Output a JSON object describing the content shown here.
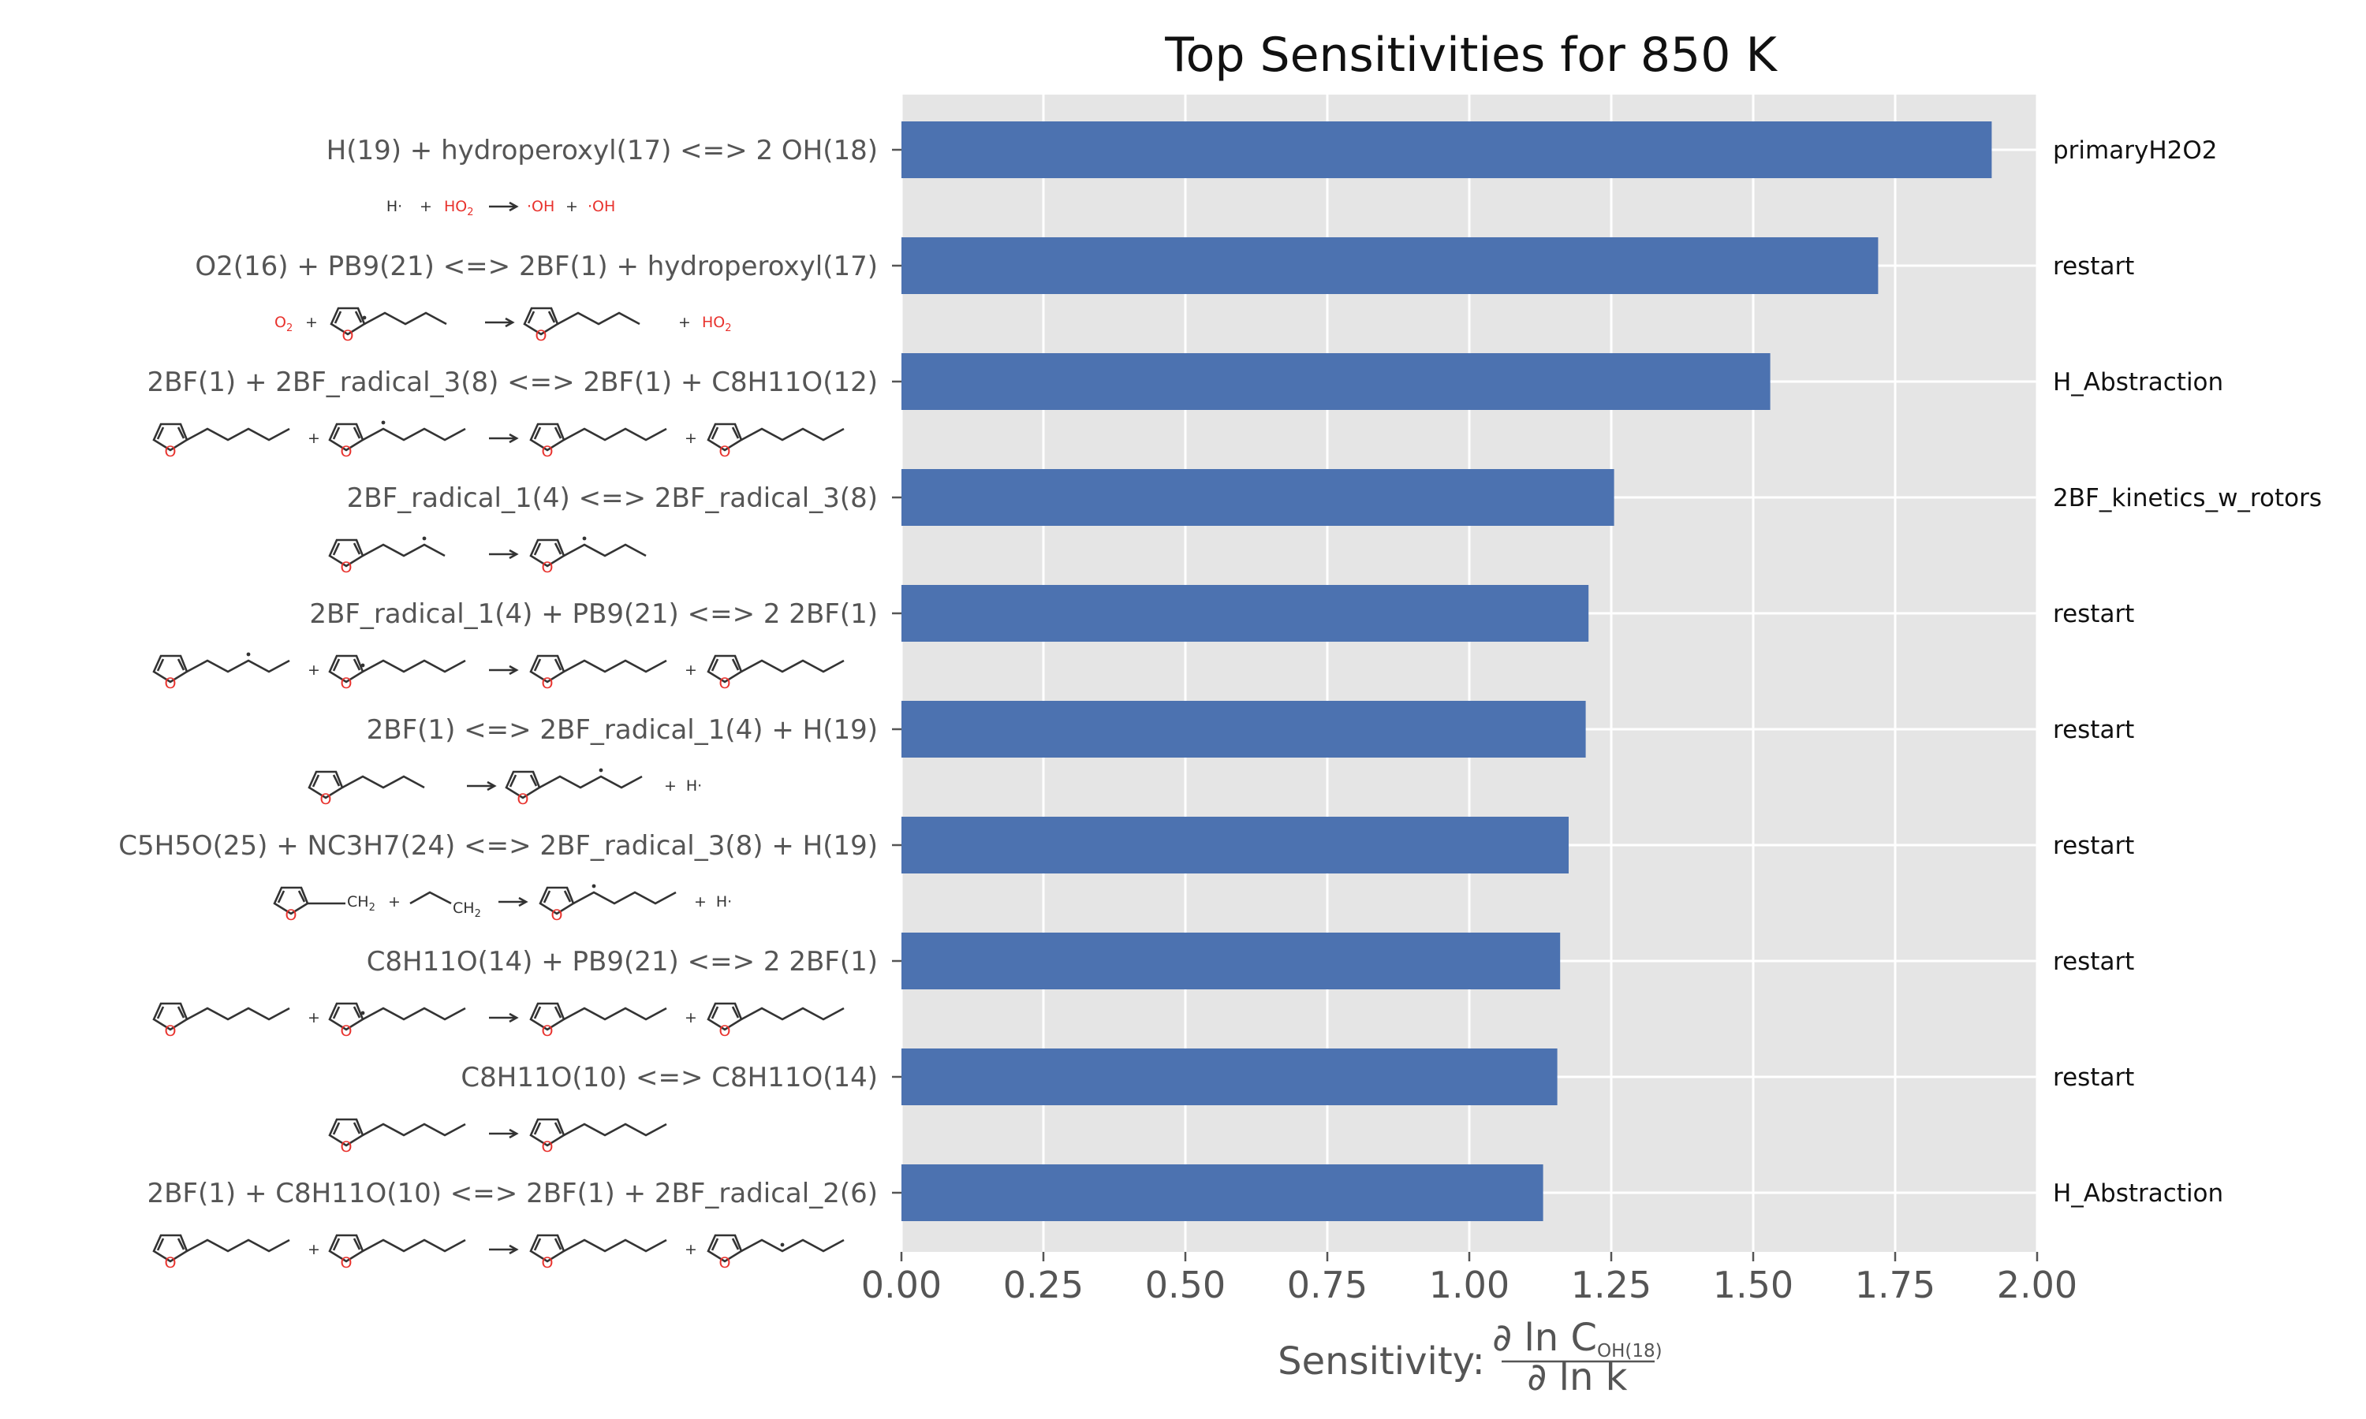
{
  "chart_data": {
    "type": "bar",
    "orientation": "horizontal",
    "title": "Top Sensitivities for 850 K",
    "xlabel": {
      "prefix": "Sensitivity: ",
      "numerator": "∂ ln C",
      "numerator_sub": "OH(18)",
      "denominator": "∂ ln k"
    },
    "xlim": [
      0,
      2.0
    ],
    "xticks": [
      "0.00",
      "0.25",
      "0.50",
      "0.75",
      "1.00",
      "1.25",
      "1.50",
      "1.75",
      "2.00"
    ],
    "grid": true,
    "bar_color": "#4c72b0",
    "background_color": "#e5e5e5",
    "categories": [
      "H(19) + hydroperoxyl(17) <=> 2 OH(18)",
      "O2(16) + PB9(21) <=> 2BF(1) + hydroperoxyl(17)",
      "2BF(1) + 2BF_radical_3(8) <=> 2BF(1) + C8H11O(12)",
      "2BF_radical_1(4) <=> 2BF_radical_3(8)",
      "2BF_radical_1(4) + PB9(21) <=> 2 2BF(1)",
      "2BF(1) <=> 2BF_radical_1(4) + H(19)",
      "C5H5O(25) + NC3H7(24) <=> 2BF_radical_3(8) + H(19)",
      "C8H11O(14) + PB9(21) <=> 2 2BF(1)",
      "C8H11O(10) <=> C8H11O(14)",
      "2BF(1) + C8H11O(10) <=> 2BF(1) + 2BF_radical_2(6)"
    ],
    "values": [
      1.92,
      1.72,
      1.53,
      1.255,
      1.21,
      1.205,
      1.175,
      1.16,
      1.155,
      1.13
    ],
    "families": [
      "primaryH2O2",
      "restart",
      "H_Abstraction",
      "2BF_kinetics_w_rotors",
      "restart",
      "restart",
      "restart",
      "restart",
      "restart",
      "H_Abstraction"
    ]
  },
  "structure_text": {
    "h_radical": "H·",
    "plus": "+",
    "ho2": "HO",
    "ho2_sub": "2",
    "oh_radical": "·OH",
    "o2": "O",
    "o2_sub": "2",
    "ring_o": "O",
    "ch2": "CH",
    "ch2_sub": "2"
  }
}
